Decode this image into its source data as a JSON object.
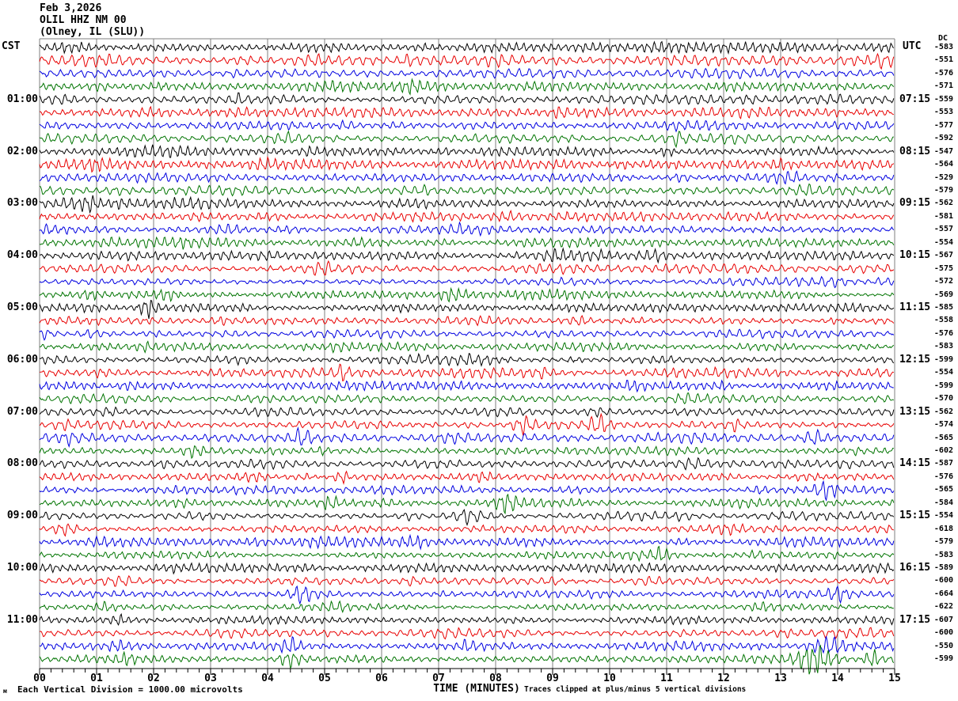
{
  "header": {
    "date": "Feb 3,2026",
    "station": "OLIL HHZ NM 00",
    "location": "(Olney, IL (SLU))"
  },
  "axes": {
    "left_label": "CST",
    "right_label": "UTC",
    "dc_label": "DC",
    "x_title": "TIME (MINUTES)",
    "x_ticks": [
      "00",
      "01",
      "02",
      "03",
      "04",
      "05",
      "06",
      "07",
      "08",
      "09",
      "10",
      "11",
      "12",
      "13",
      "14",
      "15"
    ]
  },
  "footer": {
    "corner_glyph": "м",
    "scale_note": "Each Vertical Division = 1000.00 microvolts",
    "clip_note": "Traces clipped at plus/minus 5 vertical divisions"
  },
  "colors": {
    "trace_cycle": [
      "#000000",
      "#e80000",
      "#0000e0",
      "#007400"
    ],
    "grid": "#7f7f7f",
    "axis": "#000000"
  },
  "chart_data": {
    "type": "line",
    "subtype": "helicorder-seismogram",
    "title": "OLIL HHZ NM 00 (Olney, IL (SLU)) Feb 3,2026",
    "xlabel": "TIME (MINUTES)",
    "x_range_minutes": [
      0,
      15
    ],
    "row_duration_minutes": 15,
    "rows_total": 48,
    "legend": "Left labels CST local time, right labels UTC, far right column DC offset per trace row",
    "rows": [
      {
        "cst": "",
        "utc": "",
        "dc": -583
      },
      {
        "cst": "",
        "utc": "",
        "dc": -551
      },
      {
        "cst": "",
        "utc": "",
        "dc": -576
      },
      {
        "cst": "",
        "utc": "",
        "dc": -571
      },
      {
        "cst": "01:00",
        "utc": "07:15",
        "dc": -559
      },
      {
        "cst": "",
        "utc": "",
        "dc": -553
      },
      {
        "cst": "",
        "utc": "",
        "dc": -577
      },
      {
        "cst": "",
        "utc": "",
        "dc": -592
      },
      {
        "cst": "02:00",
        "utc": "08:15",
        "dc": -547
      },
      {
        "cst": "",
        "utc": "",
        "dc": -564
      },
      {
        "cst": "",
        "utc": "",
        "dc": -529
      },
      {
        "cst": "",
        "utc": "",
        "dc": -579
      },
      {
        "cst": "03:00",
        "utc": "09:15",
        "dc": -562
      },
      {
        "cst": "",
        "utc": "",
        "dc": -581
      },
      {
        "cst": "",
        "utc": "",
        "dc": -557
      },
      {
        "cst": "",
        "utc": "",
        "dc": -554
      },
      {
        "cst": "04:00",
        "utc": "10:15",
        "dc": -567
      },
      {
        "cst": "",
        "utc": "",
        "dc": -575
      },
      {
        "cst": "",
        "utc": "",
        "dc": -572
      },
      {
        "cst": "",
        "utc": "",
        "dc": -569
      },
      {
        "cst": "05:00",
        "utc": "11:15",
        "dc": -585
      },
      {
        "cst": "",
        "utc": "",
        "dc": -558
      },
      {
        "cst": "",
        "utc": "",
        "dc": -576
      },
      {
        "cst": "",
        "utc": "",
        "dc": -583
      },
      {
        "cst": "06:00",
        "utc": "12:15",
        "dc": -599
      },
      {
        "cst": "",
        "utc": "",
        "dc": -554
      },
      {
        "cst": "",
        "utc": "",
        "dc": -599
      },
      {
        "cst": "",
        "utc": "",
        "dc": -570
      },
      {
        "cst": "07:00",
        "utc": "13:15",
        "dc": -562
      },
      {
        "cst": "",
        "utc": "",
        "dc": -574
      },
      {
        "cst": "",
        "utc": "",
        "dc": -565
      },
      {
        "cst": "",
        "utc": "",
        "dc": -602
      },
      {
        "cst": "08:00",
        "utc": "14:15",
        "dc": -587
      },
      {
        "cst": "",
        "utc": "",
        "dc": -576
      },
      {
        "cst": "",
        "utc": "",
        "dc": -565
      },
      {
        "cst": "",
        "utc": "",
        "dc": -584
      },
      {
        "cst": "09:00",
        "utc": "15:15",
        "dc": -554
      },
      {
        "cst": "",
        "utc": "",
        "dc": -618
      },
      {
        "cst": "",
        "utc": "",
        "dc": -579
      },
      {
        "cst": "",
        "utc": "",
        "dc": -583
      },
      {
        "cst": "10:00",
        "utc": "16:15",
        "dc": -589
      },
      {
        "cst": "",
        "utc": "",
        "dc": -600
      },
      {
        "cst": "",
        "utc": "",
        "dc": -664
      },
      {
        "cst": "",
        "utc": "",
        "dc": -622
      },
      {
        "cst": "11:00",
        "utc": "17:15",
        "dc": -607
      },
      {
        "cst": "",
        "utc": "",
        "dc": -600
      },
      {
        "cst": "",
        "utc": "",
        "dc": -550
      },
      {
        "cst": "",
        "utc": "",
        "dc": -599
      }
    ]
  }
}
